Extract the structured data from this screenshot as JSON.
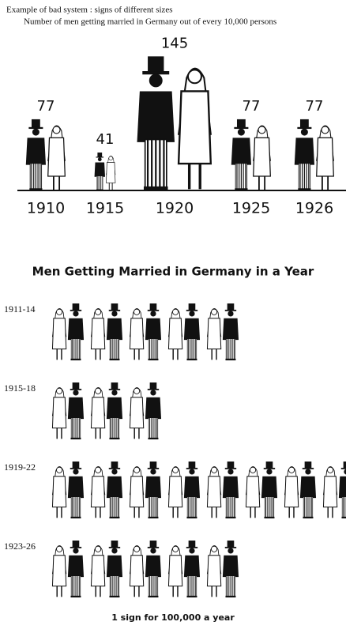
{
  "chart_data": [
    {
      "type": "pictograph-sized",
      "title": "Example of bad system :  signs of different sizes",
      "subtitle": "Number of men getting married in Germany out of every 10,000 persons",
      "categories": [
        "1910",
        "1915",
        "1920",
        "1925",
        "1926"
      ],
      "values": [
        77,
        41,
        145,
        77,
        77
      ]
    },
    {
      "type": "pictograph",
      "title": "Men Getting Married in Germany in a Year",
      "categories": [
        "1911-14",
        "1915-18",
        "1919-22",
        "1923-26"
      ],
      "values": [
        5,
        3,
        8,
        5
      ],
      "caption": "1 sign for 100,000 a year"
    }
  ]
}
